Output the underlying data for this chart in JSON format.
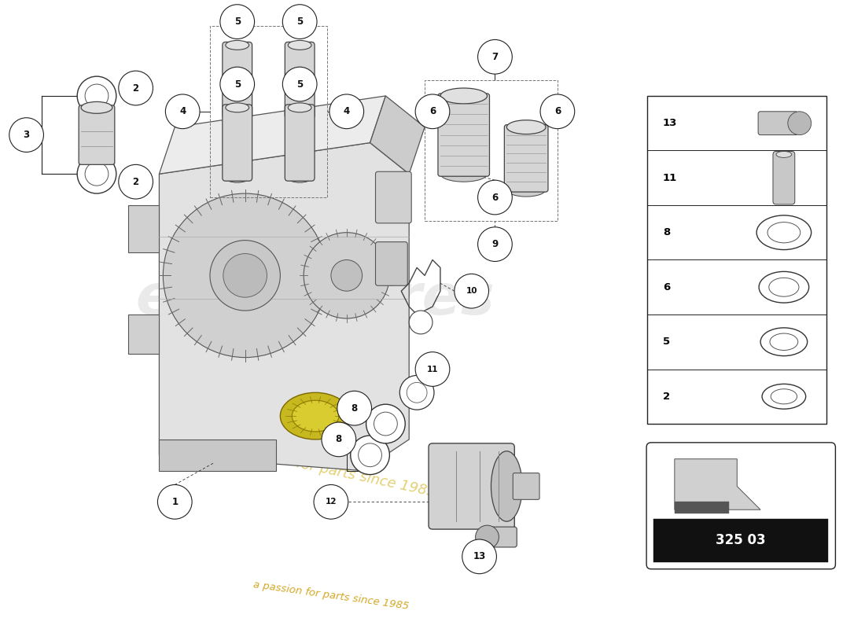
{
  "bg_color": "#ffffff",
  "watermark_line2": "a passion for parts since 1985",
  "part_number": "325 03",
  "legend_items": [
    {
      "num": "13",
      "shape": "bolt"
    },
    {
      "num": "11",
      "shape": "pin"
    },
    {
      "num": "8",
      "shape": "ring_large"
    },
    {
      "num": "6",
      "shape": "ring_medium"
    },
    {
      "num": "5",
      "shape": "ring_small"
    },
    {
      "num": "2",
      "shape": "ring_xsmall"
    }
  ]
}
